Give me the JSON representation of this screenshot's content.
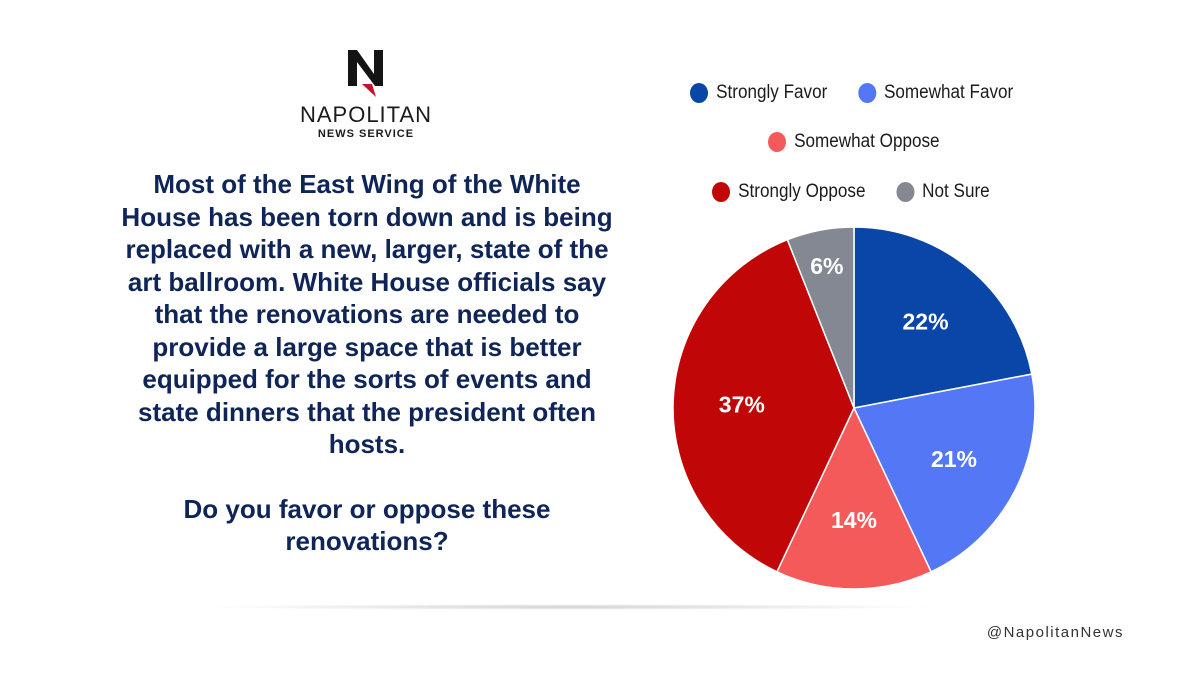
{
  "brand": {
    "name": "NAPOLITAN",
    "subtitle": "NEWS SERVICE",
    "handle": "@NapolitanNews"
  },
  "question": {
    "text": "Most of the East Wing of the White House has been torn down and is being replaced with a new, larger, state of the art ballroom. White House officials say that the renovations are needed to provide a large space that is better equipped for the sorts of events and state dinners that the president often hosts.",
    "prompt": "Do you favor or oppose these renovations?"
  },
  "chart_data": {
    "type": "pie",
    "categories": [
      "Strongly Favor",
      "Somewhat Favor",
      "Somewhat Oppose",
      "Strongly Oppose",
      "Not Sure"
    ],
    "values": [
      22,
      21,
      14,
      37,
      6
    ],
    "labels": [
      "22%",
      "21%",
      "14%",
      "37%",
      "6%"
    ],
    "colors": [
      "#0a45a8",
      "#5478f5",
      "#f55a5a",
      "#c00606",
      "#838892"
    ],
    "start_angle": "top (12 o'clock)",
    "direction": "clockwise",
    "legend_position": "top-right"
  }
}
